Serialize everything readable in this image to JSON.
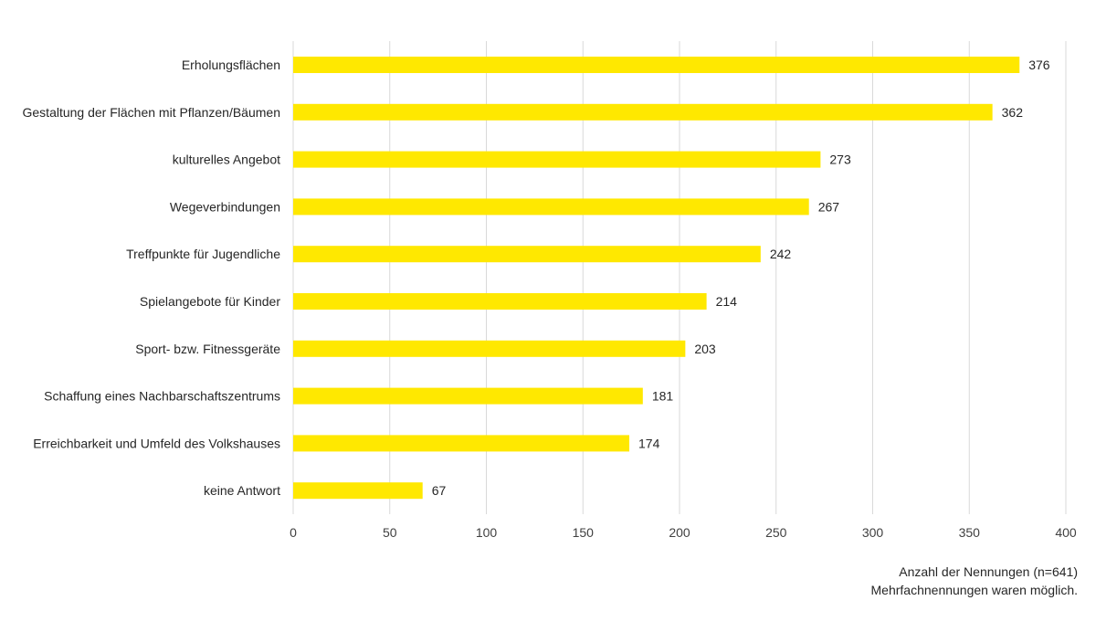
{
  "chart_data": {
    "type": "bar",
    "orientation": "horizontal",
    "categories": [
      "Erholungsflächen",
      "Gestaltung der Flächen mit Pflanzen/Bäumen",
      "kulturelles Angebot",
      "Wegeverbindungen",
      "Treffpunkte für Jugendliche",
      "Spielangebote für Kinder",
      "Sport- bzw. Fitnessgeräte",
      "Schaffung eines Nachbarschaftszentrums",
      "Erreichbarkeit und Umfeld des Volkshauses",
      "keine Antwort"
    ],
    "values": [
      376,
      362,
      273,
      267,
      242,
      214,
      203,
      181,
      174,
      67
    ],
    "xlim": [
      0,
      400
    ],
    "xticks": [
      0,
      50,
      100,
      150,
      200,
      250,
      300,
      350,
      400
    ],
    "grid": true,
    "bar_color": "#FFE800",
    "grid_color": "#D9D9D9"
  },
  "notes": {
    "line1": "Anzahl der Nennungen (n=641)",
    "line2": "Mehrfachnennungen waren möglich."
  }
}
